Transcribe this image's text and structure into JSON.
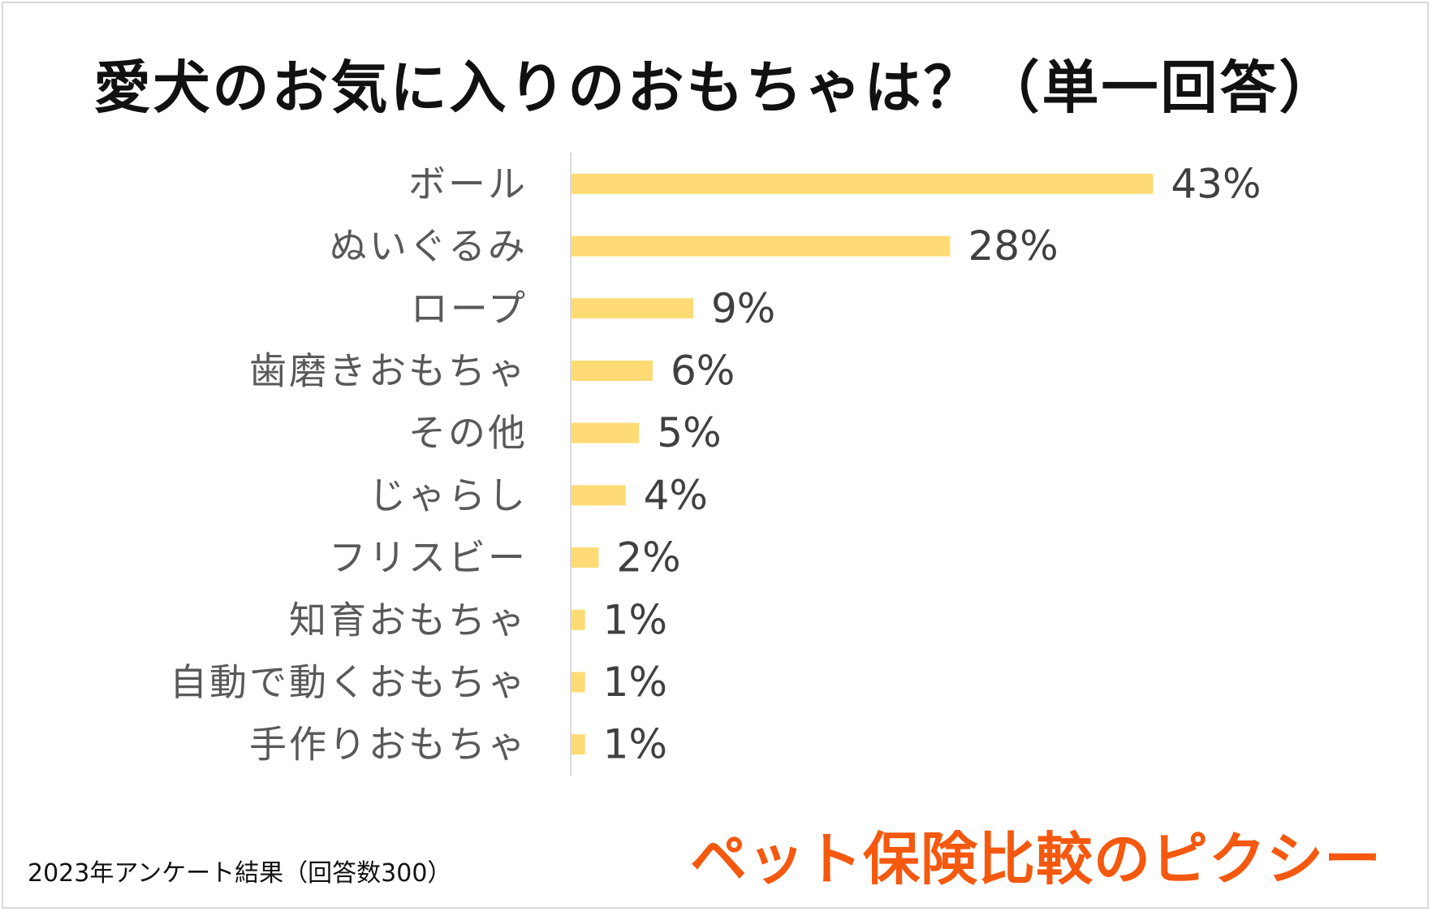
{
  "chart_data": {
    "type": "bar",
    "orientation": "horizontal",
    "title": "愛犬のお気に入りのおもちゃは？（単一回答）",
    "categories": [
      "ボール",
      "ぬいぐるみ",
      "ロープ",
      "歯磨きおもちゃ",
      "その他",
      "じゃらし",
      "フリスビー",
      "知育おもちゃ",
      "自動で動くおもちゃ",
      "手作りおもちゃ"
    ],
    "values": [
      43,
      28,
      9,
      6,
      5,
      4,
      2,
      1,
      1,
      1
    ],
    "value_labels": [
      "43%",
      "28%",
      "9%",
      "6%",
      "5%",
      "4%",
      "2%",
      "1%",
      "1%",
      "1%"
    ],
    "unit": "%",
    "xlim": [
      0,
      45
    ],
    "grid": false,
    "bar_color": "#FFDB75",
    "axis_color": "#d9d9d9"
  },
  "footnote": "2023年アンケート結果（回答数300）",
  "brand": {
    "text": "ペット保険比較のピクシー",
    "color": "#F4590F"
  }
}
